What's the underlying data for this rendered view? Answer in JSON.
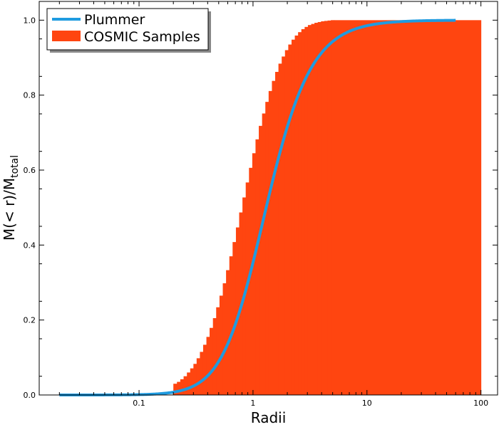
{
  "chart_data": {
    "type": "area",
    "xlabel": "Radii",
    "ylabel": "M(< r)/M",
    "ylabel_subscript": "total",
    "xscale": "log",
    "xlim": [
      0.0133,
      140
    ],
    "ylim": [
      0,
      1.05
    ],
    "x_ticks": [
      {
        "value": 0.1,
        "label": "0.1"
      },
      {
        "value": 1,
        "label": "1"
      },
      {
        "value": 10,
        "label": "10"
      },
      {
        "value": 100,
        "label": "100"
      }
    ],
    "y_ticks": [
      {
        "value": 0.0,
        "label": "0.0"
      },
      {
        "value": 0.2,
        "label": "0.2"
      },
      {
        "value": 0.4,
        "label": "0.4"
      },
      {
        "value": 0.6,
        "label": "0.6"
      },
      {
        "value": 0.8,
        "label": "0.8"
      },
      {
        "value": 1.0,
        "label": "1.0"
      }
    ],
    "legend_position": "top-left",
    "series": [
      {
        "name": "Plummer",
        "kind": "line",
        "color": "#1f9be0",
        "model": "plummer_cumulative_mass",
        "x_range": [
          0.02,
          60
        ]
      },
      {
        "name": "COSMIC Samples",
        "kind": "histogram",
        "color": "#ff4510",
        "bin_edges": [
          0.2,
          0.215,
          0.23,
          0.246,
          0.263,
          0.281,
          0.3,
          0.32,
          0.342,
          0.365,
          0.39,
          0.416,
          0.445,
          0.475,
          0.508,
          0.543,
          0.58,
          0.62,
          0.662,
          0.708,
          0.756,
          0.808,
          0.863,
          0.922,
          0.985,
          1.052,
          1.124,
          1.201,
          1.283,
          1.371,
          1.465,
          1.565,
          1.672,
          1.786,
          1.908,
          2.039,
          2.178,
          2.327,
          2.486,
          2.656,
          2.838,
          3.032,
          3.24,
          3.461,
          3.698,
          3.95,
          4.22,
          4.51,
          4.82,
          5.15,
          100
        ],
        "cumulative_values": [
          0.03,
          0.035,
          0.042,
          0.05,
          0.06,
          0.071,
          0.083,
          0.098,
          0.115,
          0.134,
          0.155,
          0.179,
          0.205,
          0.234,
          0.265,
          0.298,
          0.333,
          0.37,
          0.408,
          0.447,
          0.487,
          0.527,
          0.567,
          0.606,
          0.645,
          0.682,
          0.718,
          0.751,
          0.782,
          0.811,
          0.838,
          0.862,
          0.884,
          0.903,
          0.92,
          0.935,
          0.948,
          0.959,
          0.968,
          0.976,
          0.982,
          0.987,
          0.99,
          0.993,
          0.995,
          0.997,
          0.998,
          0.999,
          1.0,
          1.0
        ]
      }
    ]
  }
}
